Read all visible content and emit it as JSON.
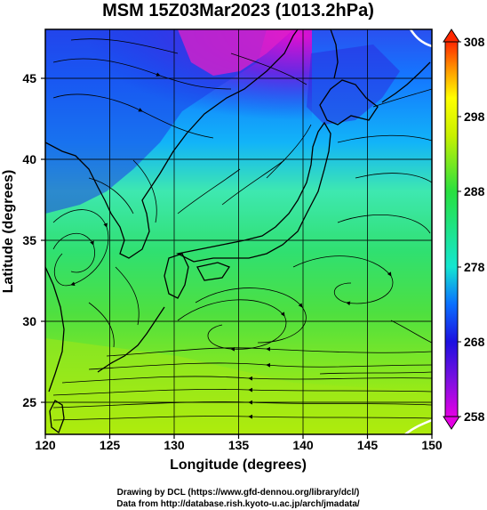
{
  "title": "MSM 15Z03Mar2023 (1013.2hPa)",
  "x_axis": {
    "label": "Longitude (degrees)",
    "range": [
      120,
      150
    ],
    "ticks": [
      120,
      125,
      130,
      135,
      140,
      145,
      150
    ],
    "tick_labels": [
      "120",
      "125",
      "130",
      "135",
      "140",
      "145",
      "150"
    ]
  },
  "y_axis": {
    "label": "Latitude  (degrees)",
    "range": [
      23,
      48
    ],
    "ticks": [
      25,
      30,
      35,
      40,
      45
    ],
    "tick_labels": [
      "25",
      "30",
      "35",
      "40",
      "45"
    ]
  },
  "colorbar": {
    "min": 258,
    "max": 308,
    "ticks": [
      258,
      268,
      278,
      288,
      298,
      308
    ],
    "tick_labels": [
      "258",
      "268",
      "278",
      "288",
      "298",
      "308"
    ],
    "colors": [
      "#e400e4",
      "#1c10e0",
      "#00a0ff",
      "#14e6d0",
      "#28e040",
      "#c8f000",
      "#ffff00",
      "#ffa000",
      "#ff2800"
    ]
  },
  "credits": {
    "line1": "Drawing by DCL (https://www.gfd-dennou.org/library/dcl/)",
    "line2": "Data from http://database.rish.kyoto-u.ac.jp/arch/jmadata/"
  }
}
